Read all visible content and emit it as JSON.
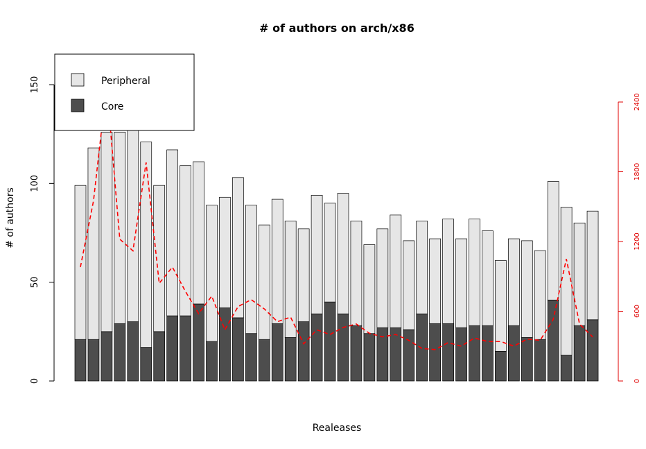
{
  "chart_data": {
    "type": "bar",
    "title": "# of authors on arch/x86",
    "xlabel": "Realeases",
    "ylabel": "# of authors",
    "ylim": [
      0,
      155
    ],
    "y_ticks": [
      "0",
      "50",
      "100",
      "150"
    ],
    "y2lim": [
      0,
      2400
    ],
    "y2_ticks": [
      "0",
      "600",
      "1200",
      "1800",
      "2400"
    ],
    "grid": false,
    "stacked": true,
    "legend_position": "top-left",
    "series": [
      {
        "name": "Core",
        "color": "#4d4d4d",
        "values": [
          21,
          21,
          25,
          29,
          30,
          17,
          25,
          33,
          33,
          39,
          20,
          37,
          32,
          24,
          21,
          29,
          22,
          30,
          34,
          40,
          34,
          28,
          24,
          27,
          27,
          26,
          34,
          29,
          29,
          27,
          28,
          28,
          15,
          28,
          22,
          21,
          41,
          13,
          28,
          31
        ]
      },
      {
        "name": "Peripheral",
        "color": "#e6e6e6",
        "values": [
          78,
          97,
          101,
          97,
          97,
          104,
          74,
          84,
          76,
          72,
          69,
          56,
          71,
          65,
          58,
          63,
          59,
          47,
          60,
          50,
          61,
          53,
          45,
          50,
          57,
          45,
          47,
          43,
          53,
          45,
          54,
          48,
          46,
          44,
          49,
          45,
          60,
          75,
          52,
          55
        ]
      }
    ],
    "line_series": {
      "axis": "right",
      "color": "#ff0000",
      "style": "dashed",
      "values": [
        980,
        1550,
        2550,
        1220,
        1120,
        1880,
        840,
        980,
        770,
        580,
        730,
        440,
        640,
        700,
        620,
        510,
        550,
        320,
        440,
        400,
        460,
        490,
        410,
        380,
        400,
        350,
        280,
        270,
        330,
        300,
        370,
        340,
        340,
        300,
        360,
        350,
        530,
        1050,
        490,
        380
      ]
    }
  }
}
